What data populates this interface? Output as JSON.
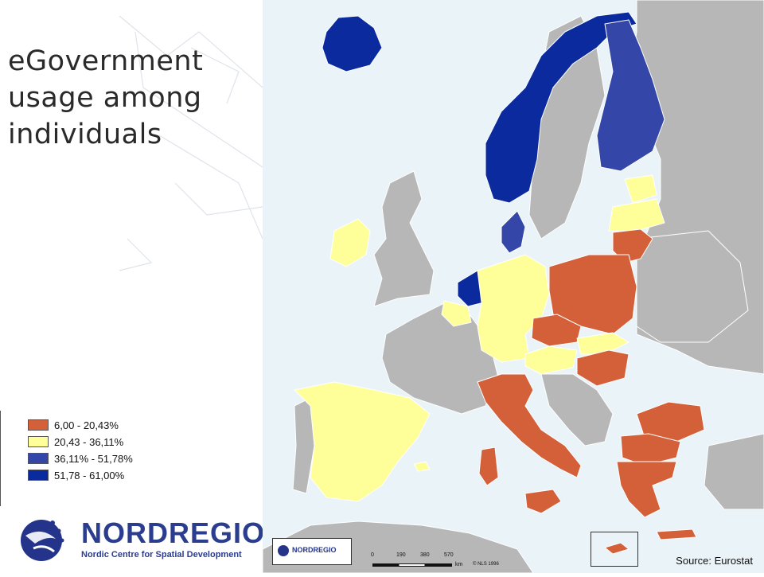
{
  "title": {
    "line1": "eGovernment",
    "line2": "usage among",
    "line3": "individuals"
  },
  "legend": {
    "items": [
      {
        "label": " 6,00 - 20,43%",
        "color": "#d4603a"
      },
      {
        "label": "20,43 - 36,11%",
        "color": "#ffff99"
      },
      {
        "label": "36,11% - 51,78%",
        "color": "#3447a8"
      },
      {
        "label": "51,78 - 61,00%",
        "color": "#0a2a9e"
      }
    ]
  },
  "logo": {
    "name": "NORDREGIO",
    "subtitle": "Nordic Centre for Spatial Development"
  },
  "map": {
    "source": "Source: Eurostat",
    "colors": {
      "sea": "#e9f3f8",
      "no_data": "#b7b7b7",
      "border": "#ffffff"
    },
    "inset_logo": "NORDREGIO",
    "scale": {
      "ticks": [
        "0",
        "190",
        "380",
        "570"
      ],
      "unit": "km"
    },
    "copyright": "© NLS 1996"
  }
}
